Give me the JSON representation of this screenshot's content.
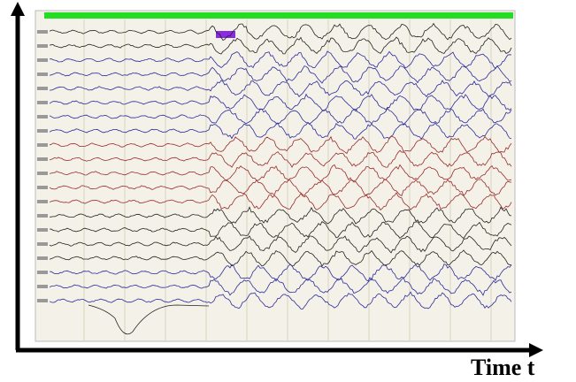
{
  "axis_label": "Time t"
}
